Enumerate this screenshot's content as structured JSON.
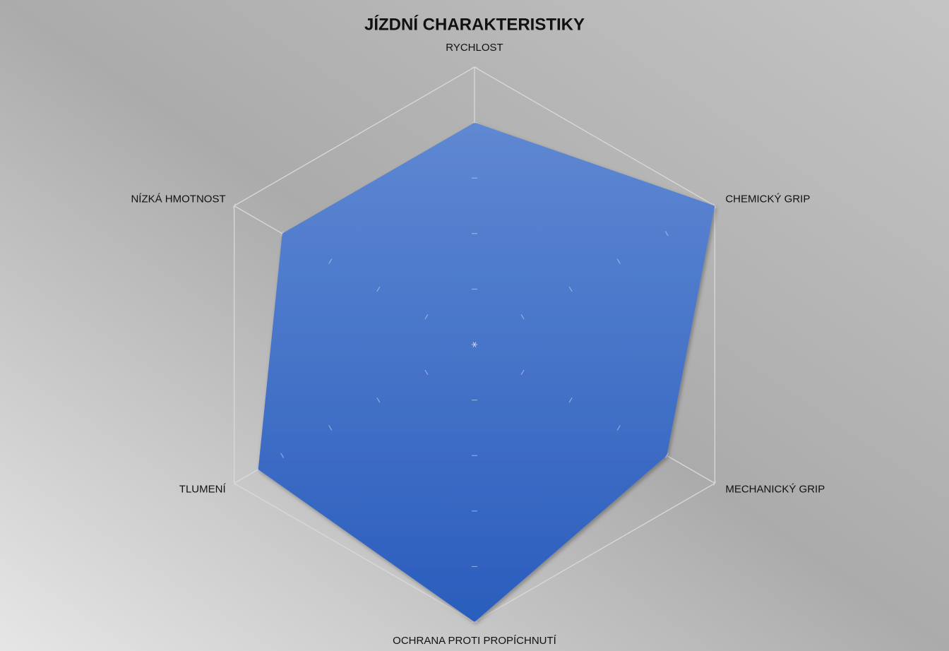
{
  "chart_data": {
    "type": "radar",
    "title": "JÍZDNÍ CHARAKTERISTIKY",
    "categories": [
      "RYCHLOST",
      "CHEMICKÝ GRIP",
      "MECHANICKÝ GRIP",
      "OCHRANA PROTI PROPÍCHNUTÍ",
      "TLUMENÍ",
      "NÍZKÁ HMOTNOST"
    ],
    "values": [
      4,
      5,
      4,
      5,
      4.5,
      4
    ],
    "color": "#3d6fcc",
    "rlim": [
      0,
      5
    ],
    "rticks": [
      0,
      1,
      2,
      3,
      4,
      5
    ]
  }
}
